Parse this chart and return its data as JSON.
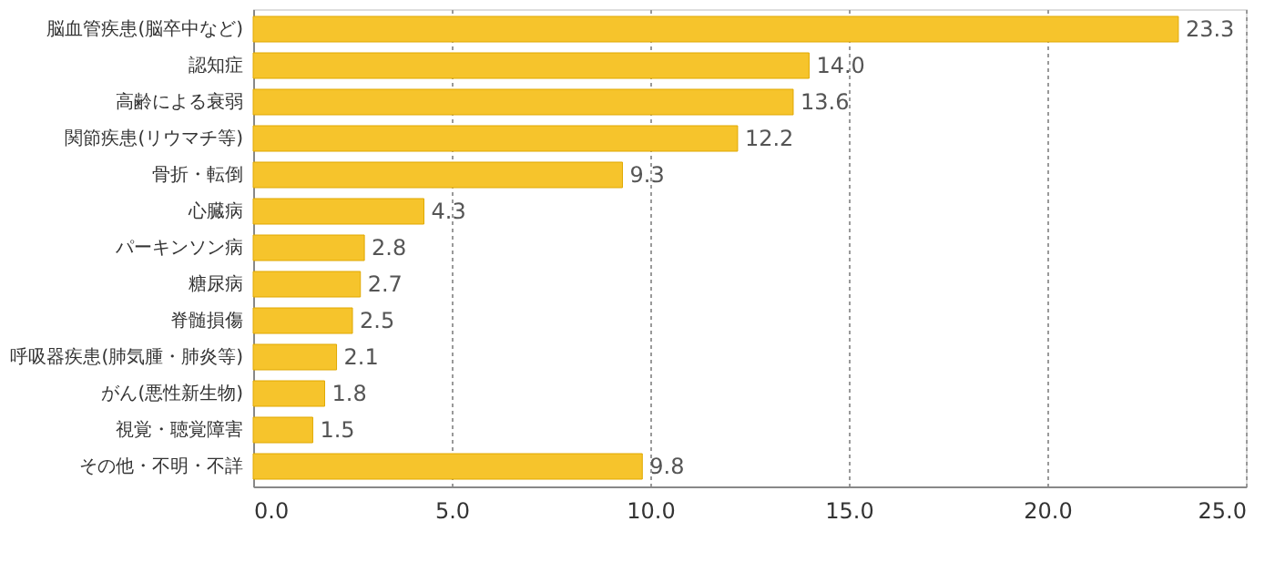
{
  "chart_data": {
    "type": "bar",
    "orientation": "horizontal",
    "categories": [
      "脳血管疾患(脳卒中など)",
      "認知症",
      "高齢による衰弱",
      "関節疾患(リウマチ等)",
      "骨折・転倒",
      "心臓病",
      "パーキンソン病",
      "糖尿病",
      "脊髄損傷",
      "呼吸器疾患(肺気腫・肺炎等)",
      "がん(悪性新生物)",
      "視覚・聴覚障害",
      "その他・不明・不詳"
    ],
    "values": [
      23.3,
      14.0,
      13.6,
      12.2,
      9.3,
      4.3,
      2.8,
      2.7,
      2.5,
      2.1,
      1.8,
      1.5,
      9.8
    ],
    "value_labels": [
      "23.3",
      "14.0",
      "13.6",
      "12.2",
      "9.3",
      "4.3",
      "2.8",
      "2.7",
      "2.5",
      "2.1",
      "1.8",
      "1.5",
      "9.8"
    ],
    "color": "#f6c42c",
    "xlim": [
      0,
      25
    ],
    "xticks": [
      {
        "value": 0,
        "label": "0.0"
      },
      {
        "value": 5,
        "label": "5.0"
      },
      {
        "value": 10,
        "label": "10.0"
      },
      {
        "value": 15,
        "label": "15.0"
      },
      {
        "value": 20,
        "label": "20.0"
      },
      {
        "value": 25,
        "label": "25.0"
      }
    ],
    "grid": "x"
  }
}
